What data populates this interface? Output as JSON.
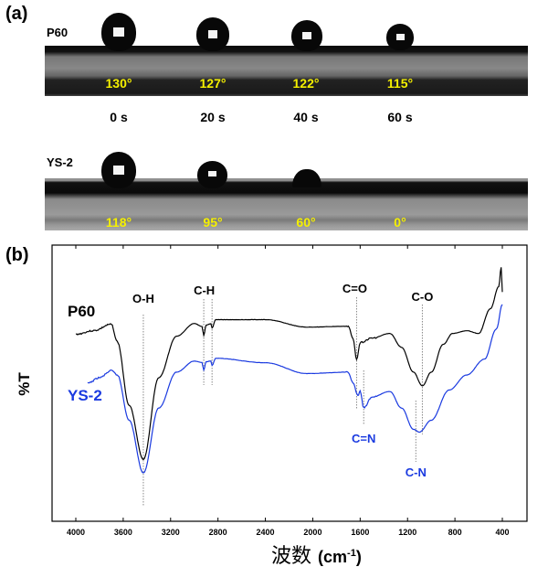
{
  "panel_a": {
    "label": "(a)",
    "times": [
      "0 s",
      "20 s",
      "40 s",
      "60 s"
    ],
    "rows": [
      {
        "sample": "P60",
        "angles": [
          "130°",
          "127°",
          "122°",
          "115°"
        ]
      },
      {
        "sample": "YS-2",
        "angles": [
          "118°",
          "95°",
          "60°",
          "0°"
        ]
      }
    ],
    "angle_color": "#f5f000"
  },
  "panel_b": {
    "label": "(b)"
  },
  "chart_data": {
    "type": "line",
    "title": "",
    "xlabel": "波数 (cm⁻¹)",
    "xlabel_main": "波数",
    "xlabel_unit": "(cm",
    "xlabel_sup": "-1",
    "xlabel_close": ")",
    "ylabel": "%T",
    "xlim": [
      4000,
      400
    ],
    "x_reversed": true,
    "xticks": [
      4000,
      3600,
      3200,
      2800,
      2400,
      2000,
      1600,
      1200,
      800,
      400
    ],
    "ylim": [
      0,
      100
    ],
    "y_ticklabels_shown": false,
    "grid": false,
    "series": [
      {
        "name": "P60",
        "color": "#000000",
        "x": [
          4000,
          3850,
          3700,
          3650,
          3550,
          3430,
          3300,
          3150,
          3000,
          2935,
          2920,
          2900,
          2860,
          2850,
          2820,
          2400,
          2050,
          1700,
          1660,
          1630,
          1600,
          1500,
          1350,
          1250,
          1150,
          1075,
          1000,
          900,
          820,
          700,
          600,
          500,
          430,
          410,
          400
        ],
        "y": [
          67.7,
          69,
          71.3,
          65,
          42,
          22.4,
          52,
          67,
          71.6,
          70.5,
          67.3,
          71,
          71.5,
          70,
          73,
          73,
          70.3,
          70.6,
          66,
          58.7,
          64.7,
          66.3,
          68,
          63,
          54,
          49,
          54,
          64,
          68,
          69,
          68,
          77,
          85,
          92,
          83
        ]
      },
      {
        "name": "YS-2",
        "color": "#1a3ae0",
        "x": [
          3900,
          3800,
          3700,
          3650,
          3550,
          3430,
          3300,
          3150,
          3000,
          2935,
          2920,
          2900,
          2860,
          2850,
          2820,
          2400,
          2050,
          1700,
          1660,
          1620,
          1600,
          1570,
          1500,
          1350,
          1250,
          1150,
          1100,
          1000,
          850,
          700,
          550,
          450,
          400
        ],
        "y": [
          50,
          52,
          54.5,
          53,
          36.6,
          17.5,
          41,
          54,
          58,
          57.5,
          54.8,
          57.8,
          58,
          56.4,
          59,
          57.4,
          53.5,
          54,
          50,
          45.5,
          47,
          41,
          45,
          47,
          41,
          33.3,
          32.3,
          36.6,
          47.5,
          53,
          58.7,
          69.6,
          78.5
        ]
      }
    ],
    "annotations": [
      {
        "text": "O-H",
        "x": 3430,
        "color": "#000000"
      },
      {
        "text": "C-H",
        "x": [
          2920,
          2850
        ],
        "color": "#000000"
      },
      {
        "text": "C=O",
        "x": 1630,
        "color": "#000000"
      },
      {
        "text": "C-O",
        "x": 1075,
        "color": "#000000"
      },
      {
        "text": "C=N",
        "x": 1570,
        "color": "#1a3ae0"
      },
      {
        "text": "C-N",
        "x": 1130,
        "color": "#1a3ae0"
      }
    ]
  }
}
